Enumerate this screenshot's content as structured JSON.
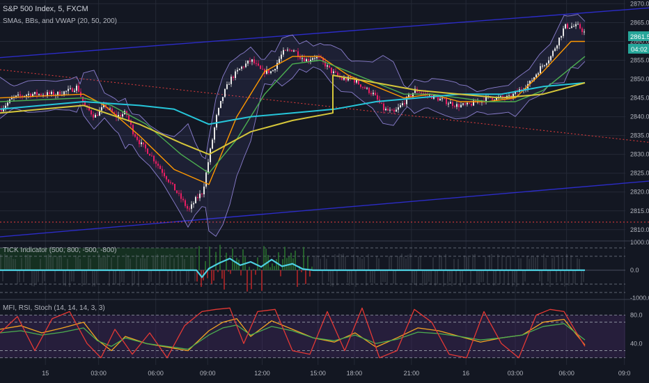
{
  "header": {
    "title": "S&P 500 Index, 5, FXCM",
    "indicator_main": "SMAs, BBs, and VWAP (20, 50, 200)",
    "indicator_tick": "TICK Indicator (500, 800, -500, -800)",
    "indicator_osc": "MFI, RSI, Stoch (14, 14, 14, 3, 3)"
  },
  "price_badges": {
    "last": "2861.5",
    "countdown": "04:02"
  },
  "colors": {
    "background": "#131722",
    "grid": "#242936",
    "axis_text": "#b2b5be",
    "sma20": "#ff9800",
    "sma50": "#4caf50",
    "sma200": "#26c6da",
    "vwap": "#d6c73a",
    "bb": "#8c7fd0",
    "up_candle": "#e8e8e8",
    "down_candle": "#e91e63",
    "trendline": "#2c2cc8",
    "red_dotted": "#d83a3a",
    "mfi": "#f5a623",
    "rsi": "#4caf50",
    "stoch": "#e53935",
    "stoch_d": "#26a69a"
  },
  "chart_data": [
    {
      "type": "candlestick",
      "title": "S&P 500 Index, 5, FXCM",
      "ylim": [
        2807,
        2871
      ],
      "y_ticks": [
        "2870.0",
        "2865.0",
        "2860.0",
        "2855.0",
        "2850.0",
        "2845.0",
        "2840.0",
        "2835.0",
        "2830.0",
        "2825.0",
        "2820.0",
        "2815.0",
        "2810.0"
      ],
      "path_points": {
        "x": [
          0,
          18,
          40,
          60,
          80,
          100,
          110,
          120,
          135,
          150,
          165,
          180,
          190,
          200,
          215,
          230,
          245,
          260,
          270,
          280,
          290,
          300,
          310,
          320,
          330,
          345,
          360,
          375,
          390,
          405,
          420,
          430,
          440,
          450,
          460,
          475,
          490,
          505,
          520,
          535,
          550,
          565,
          580,
          595,
          610,
          625,
          640,
          655,
          670,
          685,
          700,
          715,
          730,
          745,
          760,
          775,
          790,
          800,
          810,
          820,
          830,
          840
        ],
        "close": [
          2842,
          2845,
          2846,
          2846,
          2846,
          2847,
          2848,
          2843,
          2840,
          2843,
          2840,
          2841,
          2836,
          2833,
          2830,
          2826,
          2822,
          2818,
          2815,
          2818,
          2820,
          2830,
          2840,
          2846,
          2850,
          2853,
          2855,
          2852,
          2852,
          2857,
          2858,
          2856,
          2855,
          2856,
          2855,
          2852,
          2850,
          2850,
          2848,
          2846,
          2842,
          2841,
          2844,
          2847,
          2846,
          2845,
          2844,
          2843,
          2843,
          2844,
          2845,
          2845,
          2845,
          2847,
          2849,
          2853,
          2856,
          2860,
          2864,
          2864,
          2864,
          2862
        ]
      },
      "series": [
        {
          "name": "SMA 20",
          "x": [
            0,
            120,
            150,
            200,
            250,
            300,
            340,
            380,
            420,
            460,
            500,
            540,
            580,
            620,
            660,
            700,
            740,
            780,
            820,
            840
          ],
          "y": [
            2845,
            2846,
            2843,
            2835,
            2826,
            2822,
            2840,
            2852,
            2856,
            2856,
            2851,
            2848,
            2845,
            2846,
            2844,
            2844,
            2845,
            2852,
            2860,
            2860
          ]
        },
        {
          "name": "SMA 50",
          "x": [
            0,
            120,
            160,
            210,
            260,
            300,
            340,
            380,
            420,
            460,
            500,
            540,
            580,
            620,
            660,
            700,
            740,
            780,
            820,
            840
          ],
          "y": [
            2844,
            2845,
            2843,
            2838,
            2830,
            2825,
            2834,
            2846,
            2854,
            2855,
            2852,
            2849,
            2846,
            2846,
            2845,
            2844,
            2844,
            2847,
            2853,
            2856
          ]
        },
        {
          "name": "SMA 200",
          "x": [
            0,
            120,
            200,
            250,
            300,
            360,
            420,
            480,
            540,
            600,
            660,
            720,
            780,
            840
          ],
          "y": [
            2842,
            2844,
            2843,
            2842,
            2838,
            2840,
            2841,
            2842,
            2844,
            2845,
            2846,
            2846,
            2848,
            2849
          ]
        },
        {
          "name": "VWAP",
          "x": [
            0,
            60,
            120,
            200,
            260,
            300,
            360,
            420,
            478,
            478,
            540,
            600,
            660,
            720,
            780,
            840
          ],
          "y": [
            2841,
            2842,
            2843,
            2838,
            2833,
            2830,
            2836,
            2839,
            2841,
            2851,
            2849,
            2847,
            2846,
            2845,
            2846,
            2849
          ]
        }
      ],
      "trendlines": [
        {
          "kind": "solid",
          "x": [
            0,
            932
          ],
          "y": [
            2855.7,
            2868.9
          ]
        },
        {
          "kind": "solid",
          "x": [
            0,
            932
          ],
          "y": [
            2808.1,
            2822.9
          ]
        },
        {
          "kind": "dotted",
          "x": [
            0,
            932
          ],
          "y": [
            2852.5,
            2833.2
          ]
        },
        {
          "kind": "dotted",
          "x": [
            0,
            932
          ],
          "y": [
            2812.0,
            2812.0
          ]
        }
      ]
    },
    {
      "type": "line",
      "title": "TICK Indicator (500, 800, -500, -800)",
      "ylim": [
        -1050,
        1050
      ],
      "y_ticks": [
        "1000.0",
        "0.0",
        "-1000.0"
      ],
      "levels": [
        800,
        500,
        -500,
        -800
      ],
      "series": [
        {
          "name": "TICK",
          "x": [
            0,
            120,
            282,
            290,
            300,
            315,
            330,
            345,
            360,
            375,
            390,
            405,
            420,
            435,
            450,
            840
          ],
          "y": [
            0,
            0,
            0,
            -250,
            60,
            260,
            420,
            180,
            300,
            120,
            380,
            140,
            230,
            40,
            0,
            0
          ]
        }
      ]
    },
    {
      "type": "line",
      "title": "MFI, RSI, Stoch (14, 14, 14, 3, 3)",
      "ylim": [
        10,
        102
      ],
      "y_ticks": [
        "80.0",
        "40.0"
      ],
      "levels": [
        80,
        70,
        30,
        20
      ],
      "series": [
        {
          "name": "MFI",
          "x": [
            0,
            30,
            60,
            90,
            120,
            140,
            160,
            180,
            210,
            240,
            270,
            300,
            320,
            340,
            360,
            390,
            420,
            450,
            480,
            510,
            540,
            570,
            600,
            630,
            660,
            690,
            720,
            750,
            780,
            810,
            840
          ],
          "y": [
            60,
            65,
            55,
            62,
            70,
            45,
            30,
            50,
            40,
            35,
            30,
            58,
            70,
            75,
            50,
            72,
            60,
            48,
            42,
            55,
            35,
            48,
            62,
            58,
            50,
            42,
            48,
            52,
            70,
            74,
            38
          ]
        },
        {
          "name": "RSI",
          "x": [
            0,
            30,
            60,
            90,
            120,
            140,
            160,
            180,
            210,
            240,
            270,
            300,
            320,
            340,
            360,
            390,
            420,
            450,
            480,
            510,
            540,
            570,
            600,
            630,
            660,
            690,
            720,
            750,
            780,
            810,
            840
          ],
          "y": [
            55,
            58,
            52,
            56,
            62,
            44,
            36,
            48,
            40,
            36,
            32,
            52,
            62,
            66,
            52,
            64,
            58,
            48,
            44,
            52,
            40,
            46,
            56,
            54,
            50,
            45,
            48,
            52,
            64,
            68,
            45
          ]
        },
        {
          "name": "Stoch",
          "x": [
            0,
            25,
            50,
            75,
            100,
            125,
            145,
            165,
            190,
            215,
            240,
            265,
            290,
            310,
            330,
            350,
            370,
            395,
            420,
            445,
            470,
            495,
            520,
            545,
            570,
            595,
            620,
            645,
            670,
            695,
            720,
            745,
            770,
            790,
            810,
            825,
            840
          ],
          "y": [
            55,
            78,
            30,
            75,
            85,
            40,
            20,
            60,
            25,
            55,
            20,
            65,
            85,
            88,
            90,
            40,
            85,
            88,
            30,
            25,
            85,
            30,
            90,
            20,
            30,
            88,
            70,
            25,
            20,
            85,
            40,
            20,
            80,
            88,
            85,
            60,
            36
          ]
        }
      ]
    }
  ],
  "time_axis": {
    "labels": [
      {
        "t": 0.07,
        "text": "15"
      },
      {
        "t": 0.152,
        "text": "03:00"
      },
      {
        "t": 0.24,
        "text": "06:00"
      },
      {
        "t": 0.32,
        "text": "09:00"
      },
      {
        "t": 0.404,
        "text": "12:00"
      },
      {
        "t": 0.49,
        "text": "15:00"
      },
      {
        "t": 0.546,
        "text": "18:00"
      },
      {
        "t": 0.634,
        "text": "21:00"
      },
      {
        "t": 0.718,
        "text": "16"
      },
      {
        "t": 0.794,
        "text": "03:00"
      },
      {
        "t": 0.873,
        "text": "06:00"
      },
      {
        "t": 0.962,
        "text": "09:0"
      }
    ]
  }
}
